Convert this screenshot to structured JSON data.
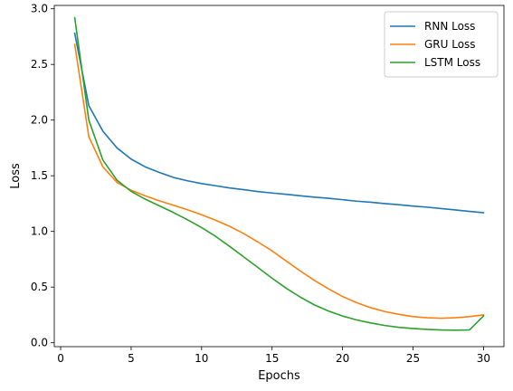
{
  "chart_data": {
    "type": "line",
    "title": "",
    "xlabel": "Epochs",
    "ylabel": "Loss",
    "xlim": [
      -0.45,
      31.45
    ],
    "ylim": [
      -0.035,
      3.03
    ],
    "xticks": [
      0,
      5,
      10,
      15,
      20,
      25,
      30
    ],
    "xtick_labels": [
      "0",
      "5",
      "10",
      "15",
      "20",
      "25",
      "30"
    ],
    "yticks": [
      0.0,
      0.5,
      1.0,
      1.5,
      2.0,
      2.5,
      3.0
    ],
    "ytick_labels": [
      "0.0",
      "0.5",
      "1.0",
      "1.5",
      "2.0",
      "2.5",
      "3.0"
    ],
    "grid": false,
    "legend_position": "top-right",
    "x": [
      1,
      2,
      3,
      4,
      5,
      6,
      7,
      8,
      9,
      10,
      11,
      12,
      13,
      14,
      15,
      16,
      17,
      18,
      19,
      20,
      21,
      22,
      23,
      24,
      25,
      26,
      27,
      28,
      29,
      30
    ],
    "series": [
      {
        "name": "RNN Loss",
        "color": "#1f77b4",
        "values": [
          2.78,
          2.13,
          1.9,
          1.75,
          1.65,
          1.58,
          1.53,
          1.485,
          1.455,
          1.43,
          1.41,
          1.39,
          1.375,
          1.358,
          1.345,
          1.333,
          1.32,
          1.308,
          1.298,
          1.285,
          1.272,
          1.262,
          1.25,
          1.24,
          1.228,
          1.218,
          1.205,
          1.193,
          1.18,
          1.168
        ]
      },
      {
        "name": "GRU Loss",
        "color": "#ff7f0e",
        "values": [
          2.68,
          1.85,
          1.58,
          1.44,
          1.37,
          1.32,
          1.275,
          1.235,
          1.195,
          1.15,
          1.1,
          1.045,
          0.98,
          0.905,
          0.825,
          0.735,
          0.645,
          0.56,
          0.485,
          0.415,
          0.36,
          0.315,
          0.28,
          0.255,
          0.235,
          0.225,
          0.22,
          0.225,
          0.235,
          0.25
        ]
      },
      {
        "name": "LSTM Loss",
        "color": "#2ca02c",
        "values": [
          2.92,
          2.0,
          1.64,
          1.46,
          1.36,
          1.29,
          1.23,
          1.17,
          1.105,
          1.035,
          0.955,
          0.865,
          0.77,
          0.675,
          0.58,
          0.49,
          0.41,
          0.34,
          0.285,
          0.24,
          0.205,
          0.178,
          0.155,
          0.138,
          0.128,
          0.12,
          0.115,
          0.113,
          0.115,
          0.24
        ]
      }
    ]
  }
}
